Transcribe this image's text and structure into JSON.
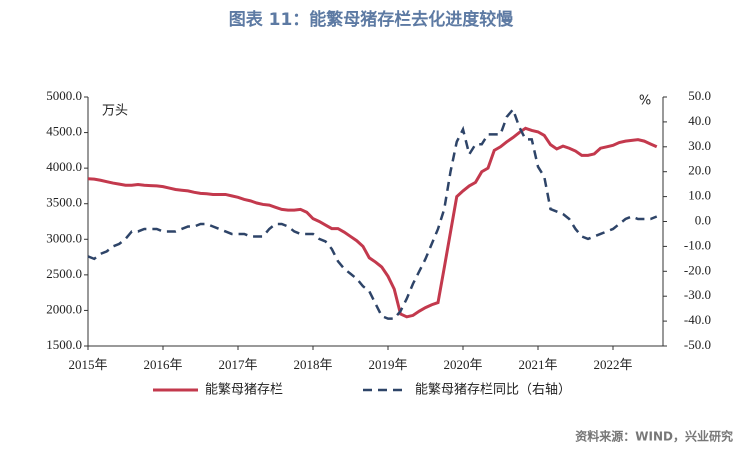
{
  "chart_data": {
    "type": "line",
    "title": "图表 11：能繁母猪存栏去化进度较慢",
    "y_label": "万头",
    "y2_label": "%",
    "source": "资料来源：WIND，兴业研究",
    "categories": [
      "2015年",
      null,
      null,
      null,
      null,
      null,
      null,
      null,
      null,
      null,
      null,
      null,
      "2016年",
      null,
      null,
      null,
      null,
      null,
      null,
      null,
      null,
      null,
      null,
      null,
      "2017年",
      null,
      null,
      null,
      null,
      null,
      null,
      null,
      null,
      null,
      null,
      null,
      "2018年",
      null,
      null,
      null,
      null,
      null,
      null,
      null,
      null,
      null,
      null,
      null,
      "2019年",
      null,
      null,
      null,
      null,
      null,
      null,
      null,
      null,
      null,
      null,
      null,
      "2020年",
      null,
      null,
      null,
      null,
      null,
      null,
      null,
      null,
      null,
      null,
      null,
      "2021年",
      null,
      null,
      null,
      null,
      null,
      null,
      null,
      null,
      null,
      null,
      null,
      "2022年",
      null,
      null,
      null,
      null,
      null,
      null,
      null
    ],
    "series": [
      {
        "name": "能繁母猪存栏",
        "color": "#c3394d",
        "dash": false,
        "values": [
          3850,
          3845,
          3830,
          3810,
          3790,
          3775,
          3760,
          3760,
          3770,
          3760,
          3755,
          3750,
          3740,
          3720,
          3700,
          3690,
          3680,
          3660,
          3645,
          3640,
          3630,
          3630,
          3630,
          3610,
          3590,
          3560,
          3540,
          3510,
          3490,
          3480,
          3450,
          3420,
          3410,
          3410,
          3420,
          3380,
          3290,
          3250,
          3200,
          3150,
          3150,
          3100,
          3040,
          2980,
          2900,
          2740,
          2680,
          2610,
          2480,
          2300,
          1950,
          1910,
          1930,
          1990,
          2040,
          2080,
          2110,
          2600,
          3100,
          3600,
          3680,
          3750,
          3800,
          3950,
          4000,
          4250,
          4300,
          4370,
          4430,
          4500,
          4560,
          4530,
          4510,
          4460,
          4330,
          4270,
          4310,
          4280,
          4240,
          4180,
          4180,
          4200,
          4280,
          4300,
          4320,
          4360,
          4380,
          4390,
          4400,
          4380,
          4340,
          4300
        ]
      },
      {
        "name": "能繁母猪存栏同比（右轴）",
        "color": "#2e4468",
        "dash": true,
        "axis": "y2",
        "values": [
          -14,
          -15,
          -13,
          -12,
          -10,
          -9,
          -7,
          -4,
          -4,
          -3,
          -3,
          -3,
          -4,
          -4,
          -4,
          -3,
          -2,
          -2,
          -1,
          -1,
          -2,
          -3,
          -4,
          -5,
          -5,
          -5,
          -6,
          -6,
          -6,
          -3,
          -1,
          -1,
          -2,
          -4,
          -5,
          -5,
          -5,
          -7,
          -8,
          -11,
          -16,
          -19,
          -21,
          -23,
          -26,
          -28,
          -33,
          -38,
          -39,
          -39,
          -36,
          -31,
          -25,
          -20,
          -15,
          -9,
          -3,
          5,
          20,
          32,
          37,
          27,
          31,
          31,
          35,
          35,
          35,
          42,
          45,
          38,
          33,
          33,
          22,
          18,
          5,
          4,
          3,
          1,
          -3,
          -6,
          -7,
          -6,
          -5,
          -4,
          -3,
          -1,
          1,
          2,
          1,
          1,
          1,
          2
        ]
      }
    ],
    "ylim": [
      1500,
      5000
    ],
    "yticks": [
      {
        "value": 1500,
        "label": "1500.0"
      },
      {
        "value": 2000,
        "label": "2000.0"
      },
      {
        "value": 2500,
        "label": "2500.0"
      },
      {
        "value": 3000,
        "label": "3000.0"
      },
      {
        "value": 3500,
        "label": "3500.0"
      },
      {
        "value": 4000,
        "label": "4000.0"
      },
      {
        "value": 4500,
        "label": "4500.0"
      },
      {
        "value": 5000,
        "label": "5000.0"
      }
    ],
    "y2lim": [
      -50,
      50
    ],
    "y2ticks": [
      {
        "value": -50,
        "label": "-50.0"
      },
      {
        "value": -40,
        "label": "-40.0"
      },
      {
        "value": -30,
        "label": "-30.0"
      },
      {
        "value": -20,
        "label": "-20.0"
      },
      {
        "value": -10,
        "label": "-10.0"
      },
      {
        "value": 0,
        "label": "0.0"
      },
      {
        "value": 10,
        "label": "10.0"
      },
      {
        "value": 20,
        "label": "20.0"
      },
      {
        "value": 30,
        "label": "30.0"
      },
      {
        "value": 40,
        "label": "40.0"
      },
      {
        "value": 50,
        "label": "50.0"
      }
    ],
    "grid": false,
    "legend": "bottom"
  }
}
